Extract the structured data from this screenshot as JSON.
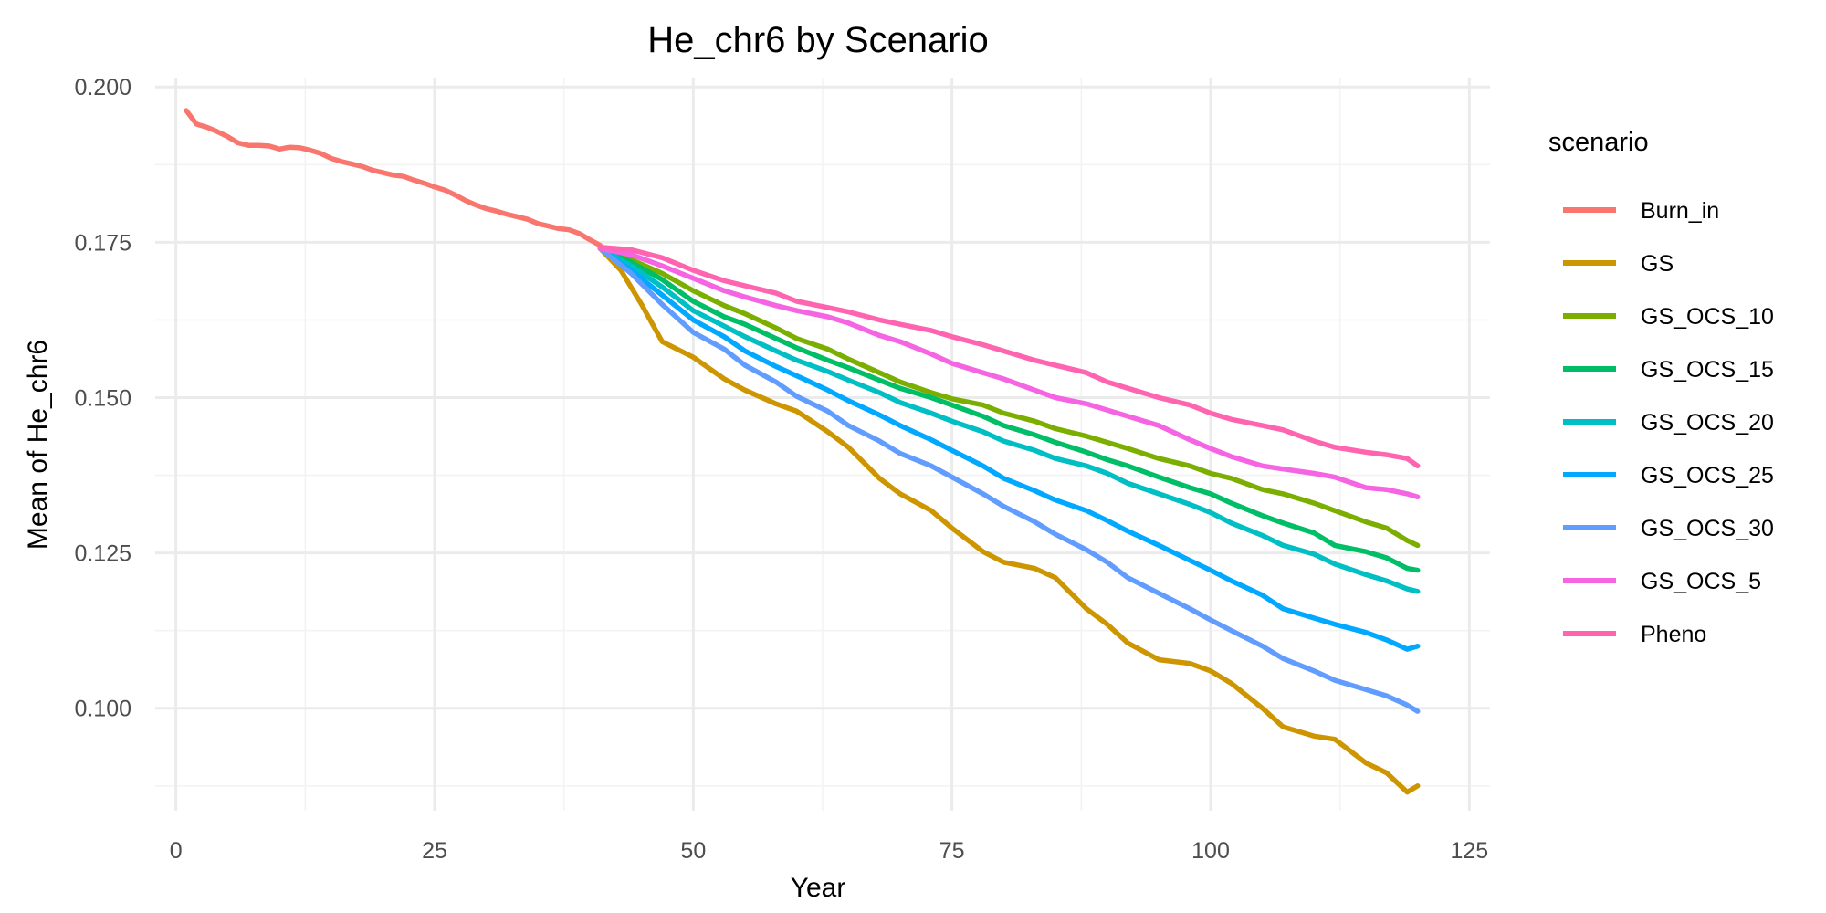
{
  "chart_data": {
    "type": "line",
    "title": "He_chr6  by Scenario",
    "xlabel": "Year",
    "ylabel": "Mean of He_chr6",
    "xlim": [
      -2,
      127
    ],
    "ylim": [
      0.0835,
      0.2015
    ],
    "x_ticks": [
      0,
      25,
      50,
      75,
      100,
      125
    ],
    "y_ticks": [
      0.1,
      0.125,
      0.15,
      0.175,
      0.2
    ],
    "x_tick_labels": [
      "0",
      "25",
      "50",
      "75",
      "100",
      "125"
    ],
    "y_tick_labels": [
      "0.100",
      "0.125",
      "0.150",
      "0.175",
      "0.200"
    ],
    "grid": true,
    "legend": {
      "title": "scenario",
      "position": "right"
    },
    "series": [
      {
        "name": "Burn_in",
        "color": "#F8766D",
        "points": [
          [
            1,
            0.1962
          ],
          [
            2,
            0.194
          ],
          [
            3,
            0.1935
          ],
          [
            4,
            0.1928
          ],
          [
            5,
            0.192
          ],
          [
            6,
            0.191
          ],
          [
            7,
            0.1906
          ],
          [
            8,
            0.1906
          ],
          [
            9,
            0.1905
          ],
          [
            10,
            0.19
          ],
          [
            11,
            0.1903
          ],
          [
            12,
            0.1902
          ],
          [
            13,
            0.1898
          ],
          [
            14,
            0.1893
          ],
          [
            15,
            0.1885
          ],
          [
            16,
            0.188
          ],
          [
            17,
            0.1876
          ],
          [
            18,
            0.1872
          ],
          [
            19,
            0.1866
          ],
          [
            20,
            0.1862
          ],
          [
            21,
            0.1858
          ],
          [
            22,
            0.1856
          ],
          [
            23,
            0.185
          ],
          [
            24,
            0.1845
          ],
          [
            25,
            0.1839
          ],
          [
            26,
            0.1834
          ],
          [
            27,
            0.1826
          ],
          [
            28,
            0.1817
          ],
          [
            29,
            0.181
          ],
          [
            30,
            0.1804
          ],
          [
            31,
            0.18
          ],
          [
            32,
            0.1795
          ],
          [
            33,
            0.1791
          ],
          [
            34,
            0.1787
          ],
          [
            35,
            0.178
          ],
          [
            36,
            0.1776
          ],
          [
            37,
            0.1772
          ],
          [
            38,
            0.177
          ],
          [
            39,
            0.1764
          ],
          [
            40,
            0.1754
          ],
          [
            41,
            0.1745
          ]
        ]
      },
      {
        "name": "GS",
        "color": "#CD9600",
        "points": [
          [
            41,
            0.174
          ],
          [
            43,
            0.1705
          ],
          [
            45,
            0.165
          ],
          [
            47,
            0.159
          ],
          [
            50,
            0.1565
          ],
          [
            53,
            0.153
          ],
          [
            55,
            0.1512
          ],
          [
            58,
            0.149
          ],
          [
            60,
            0.1478
          ],
          [
            63,
            0.1445
          ],
          [
            65,
            0.142
          ],
          [
            68,
            0.137
          ],
          [
            70,
            0.1345
          ],
          [
            73,
            0.1318
          ],
          [
            75,
            0.129
          ],
          [
            78,
            0.1252
          ],
          [
            80,
            0.1235
          ],
          [
            83,
            0.1225
          ],
          [
            85,
            0.121
          ],
          [
            88,
            0.116
          ],
          [
            90,
            0.1135
          ],
          [
            92,
            0.1105
          ],
          [
            95,
            0.1078
          ],
          [
            98,
            0.1072
          ],
          [
            100,
            0.106
          ],
          [
            102,
            0.104
          ],
          [
            105,
            0.1
          ],
          [
            107,
            0.097
          ],
          [
            110,
            0.0955
          ],
          [
            112,
            0.095
          ],
          [
            115,
            0.0912
          ],
          [
            117,
            0.0896
          ],
          [
            119,
            0.0865
          ],
          [
            120,
            0.0875
          ]
        ]
      },
      {
        "name": "GS_OCS_10",
        "color": "#7CAE00",
        "points": [
          [
            41,
            0.174
          ],
          [
            44,
            0.1722
          ],
          [
            47,
            0.17
          ],
          [
            50,
            0.1672
          ],
          [
            53,
            0.1648
          ],
          [
            55,
            0.1635
          ],
          [
            58,
            0.1612
          ],
          [
            60,
            0.1595
          ],
          [
            63,
            0.1578
          ],
          [
            65,
            0.1562
          ],
          [
            68,
            0.154
          ],
          [
            70,
            0.1525
          ],
          [
            73,
            0.1508
          ],
          [
            75,
            0.1498
          ],
          [
            78,
            0.1488
          ],
          [
            80,
            0.1475
          ],
          [
            83,
            0.1462
          ],
          [
            85,
            0.145
          ],
          [
            88,
            0.1438
          ],
          [
            90,
            0.1428
          ],
          [
            92,
            0.1418
          ],
          [
            95,
            0.1402
          ],
          [
            98,
            0.139
          ],
          [
            100,
            0.1378
          ],
          [
            102,
            0.137
          ],
          [
            105,
            0.1352
          ],
          [
            107,
            0.1345
          ],
          [
            110,
            0.133
          ],
          [
            112,
            0.1318
          ],
          [
            115,
            0.13
          ],
          [
            117,
            0.129
          ],
          [
            119,
            0.127
          ],
          [
            120,
            0.1262
          ]
        ]
      },
      {
        "name": "GS_OCS_15",
        "color": "#00BE67",
        "points": [
          [
            41,
            0.174
          ],
          [
            44,
            0.1718
          ],
          [
            47,
            0.169
          ],
          [
            50,
            0.1655
          ],
          [
            53,
            0.163
          ],
          [
            55,
            0.1618
          ],
          [
            58,
            0.1595
          ],
          [
            60,
            0.158
          ],
          [
            63,
            0.156
          ],
          [
            65,
            0.1548
          ],
          [
            68,
            0.1528
          ],
          [
            70,
            0.1515
          ],
          [
            73,
            0.15
          ],
          [
            75,
            0.1488
          ],
          [
            78,
            0.147
          ],
          [
            80,
            0.1455
          ],
          [
            83,
            0.144
          ],
          [
            85,
            0.1428
          ],
          [
            88,
            0.1412
          ],
          [
            90,
            0.14
          ],
          [
            92,
            0.139
          ],
          [
            95,
            0.1372
          ],
          [
            98,
            0.1355
          ],
          [
            100,
            0.1345
          ],
          [
            102,
            0.133
          ],
          [
            105,
            0.131
          ],
          [
            107,
            0.1298
          ],
          [
            110,
            0.1282
          ],
          [
            112,
            0.1262
          ],
          [
            115,
            0.1252
          ],
          [
            117,
            0.1242
          ],
          [
            119,
            0.1225
          ],
          [
            120,
            0.1222
          ]
        ]
      },
      {
        "name": "GS_OCS_20",
        "color": "#00BFC4",
        "points": [
          [
            41,
            0.174
          ],
          [
            44,
            0.1712
          ],
          [
            47,
            0.1678
          ],
          [
            50,
            0.164
          ],
          [
            53,
            0.1615
          ],
          [
            55,
            0.1598
          ],
          [
            58,
            0.1575
          ],
          [
            60,
            0.156
          ],
          [
            63,
            0.1542
          ],
          [
            65,
            0.1528
          ],
          [
            68,
            0.1508
          ],
          [
            70,
            0.1492
          ],
          [
            73,
            0.1475
          ],
          [
            75,
            0.1462
          ],
          [
            78,
            0.1445
          ],
          [
            80,
            0.143
          ],
          [
            83,
            0.1415
          ],
          [
            85,
            0.1402
          ],
          [
            88,
            0.139
          ],
          [
            90,
            0.1378
          ],
          [
            92,
            0.1362
          ],
          [
            95,
            0.1345
          ],
          [
            98,
            0.1328
          ],
          [
            100,
            0.1315
          ],
          [
            102,
            0.1298
          ],
          [
            105,
            0.1278
          ],
          [
            107,
            0.1262
          ],
          [
            110,
            0.1248
          ],
          [
            112,
            0.1232
          ],
          [
            115,
            0.1215
          ],
          [
            117,
            0.1205
          ],
          [
            119,
            0.1192
          ],
          [
            120,
            0.1188
          ]
        ]
      },
      {
        "name": "GS_OCS_25",
        "color": "#00A9FF",
        "points": [
          [
            41,
            0.174
          ],
          [
            44,
            0.1705
          ],
          [
            47,
            0.1665
          ],
          [
            50,
            0.1625
          ],
          [
            53,
            0.1598
          ],
          [
            55,
            0.1575
          ],
          [
            58,
            0.155
          ],
          [
            60,
            0.1535
          ],
          [
            63,
            0.1512
          ],
          [
            65,
            0.1495
          ],
          [
            68,
            0.1472
          ],
          [
            70,
            0.1455
          ],
          [
            73,
            0.1432
          ],
          [
            75,
            0.1415
          ],
          [
            78,
            0.139
          ],
          [
            80,
            0.137
          ],
          [
            83,
            0.135
          ],
          [
            85,
            0.1335
          ],
          [
            88,
            0.1318
          ],
          [
            90,
            0.1302
          ],
          [
            92,
            0.1285
          ],
          [
            95,
            0.1262
          ],
          [
            98,
            0.1238
          ],
          [
            100,
            0.1222
          ],
          [
            102,
            0.1205
          ],
          [
            105,
            0.1182
          ],
          [
            107,
            0.116
          ],
          [
            110,
            0.1145
          ],
          [
            112,
            0.1135
          ],
          [
            115,
            0.1122
          ],
          [
            117,
            0.111
          ],
          [
            119,
            0.1095
          ],
          [
            120,
            0.11
          ]
        ]
      },
      {
        "name": "GS_OCS_30",
        "color": "#619CFF",
        "points": [
          [
            41,
            0.174
          ],
          [
            44,
            0.17
          ],
          [
            47,
            0.165
          ],
          [
            50,
            0.1605
          ],
          [
            53,
            0.1578
          ],
          [
            55,
            0.1552
          ],
          [
            58,
            0.1525
          ],
          [
            60,
            0.1502
          ],
          [
            63,
            0.1478
          ],
          [
            65,
            0.1455
          ],
          [
            68,
            0.143
          ],
          [
            70,
            0.141
          ],
          [
            73,
            0.139
          ],
          [
            75,
            0.1372
          ],
          [
            78,
            0.1345
          ],
          [
            80,
            0.1325
          ],
          [
            83,
            0.13
          ],
          [
            85,
            0.128
          ],
          [
            88,
            0.1255
          ],
          [
            90,
            0.1235
          ],
          [
            92,
            0.121
          ],
          [
            95,
            0.1185
          ],
          [
            98,
            0.116
          ],
          [
            100,
            0.1142
          ],
          [
            102,
            0.1125
          ],
          [
            105,
            0.11
          ],
          [
            107,
            0.108
          ],
          [
            110,
            0.106
          ],
          [
            112,
            0.1045
          ],
          [
            115,
            0.103
          ],
          [
            117,
            0.102
          ],
          [
            119,
            0.1005
          ],
          [
            120,
            0.0995
          ]
        ]
      },
      {
        "name": "GS_OCS_5",
        "color": "#F564E3",
        "points": [
          [
            41,
            0.174
          ],
          [
            44,
            0.173
          ],
          [
            47,
            0.1712
          ],
          [
            50,
            0.1692
          ],
          [
            53,
            0.1672
          ],
          [
            55,
            0.1662
          ],
          [
            58,
            0.1648
          ],
          [
            60,
            0.164
          ],
          [
            63,
            0.163
          ],
          [
            65,
            0.162
          ],
          [
            68,
            0.16
          ],
          [
            70,
            0.159
          ],
          [
            73,
            0.157
          ],
          [
            75,
            0.1555
          ],
          [
            78,
            0.154
          ],
          [
            80,
            0.153
          ],
          [
            83,
            0.1512
          ],
          [
            85,
            0.15
          ],
          [
            88,
            0.149
          ],
          [
            90,
            0.148
          ],
          [
            92,
            0.147
          ],
          [
            95,
            0.1455
          ],
          [
            98,
            0.1432
          ],
          [
            100,
            0.1418
          ],
          [
            102,
            0.1405
          ],
          [
            105,
            0.139
          ],
          [
            107,
            0.1385
          ],
          [
            110,
            0.1378
          ],
          [
            112,
            0.1372
          ],
          [
            115,
            0.1355
          ],
          [
            117,
            0.1352
          ],
          [
            119,
            0.1345
          ],
          [
            120,
            0.134
          ]
        ]
      },
      {
        "name": "Pheno",
        "color": "#FF64B0",
        "points": [
          [
            41,
            0.1742
          ],
          [
            44,
            0.1738
          ],
          [
            47,
            0.1725
          ],
          [
            50,
            0.1705
          ],
          [
            53,
            0.1688
          ],
          [
            55,
            0.168
          ],
          [
            58,
            0.1668
          ],
          [
            60,
            0.1655
          ],
          [
            63,
            0.1645
          ],
          [
            65,
            0.1638
          ],
          [
            68,
            0.1625
          ],
          [
            70,
            0.1618
          ],
          [
            73,
            0.1608
          ],
          [
            75,
            0.1598
          ],
          [
            78,
            0.1585
          ],
          [
            80,
            0.1575
          ],
          [
            83,
            0.156
          ],
          [
            85,
            0.1552
          ],
          [
            88,
            0.154
          ],
          [
            90,
            0.1525
          ],
          [
            92,
            0.1515
          ],
          [
            95,
            0.15
          ],
          [
            98,
            0.1488
          ],
          [
            100,
            0.1475
          ],
          [
            102,
            0.1465
          ],
          [
            105,
            0.1455
          ],
          [
            107,
            0.1448
          ],
          [
            110,
            0.143
          ],
          [
            112,
            0.142
          ],
          [
            115,
            0.1412
          ],
          [
            117,
            0.1408
          ],
          [
            119,
            0.1402
          ],
          [
            120,
            0.139
          ]
        ]
      }
    ]
  }
}
